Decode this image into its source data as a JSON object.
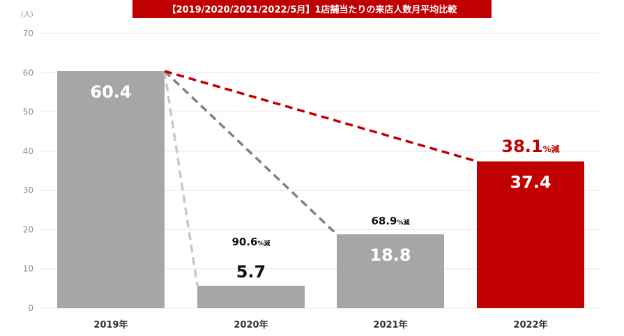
{
  "chart_data": {
    "type": "bar",
    "title": "【2019/2020/2021/2022/5月】1店舗当たりの来店人数月平均比較",
    "yunit": "(人)",
    "ylim": [
      0,
      70
    ],
    "yticks": [
      0,
      10,
      20,
      30,
      40,
      50,
      60,
      70
    ],
    "categories": [
      "2019年",
      "2020年",
      "2021年",
      "2022年"
    ],
    "values": [
      60.4,
      5.7,
      18.8,
      37.4
    ],
    "value_labels": [
      "60.4",
      "5.7",
      "18.8",
      "37.4"
    ],
    "bar_colors": [
      "#a6a6a6",
      "#a6a6a6",
      "#a6a6a6",
      "#c00000"
    ],
    "annotations": [
      {
        "category_index": 1,
        "value": "90.6",
        "unit": "%減",
        "color": "#111111"
      },
      {
        "category_index": 2,
        "value": "68.9",
        "unit": "%減",
        "color": "#111111"
      },
      {
        "category_index": 3,
        "value": "38.1",
        "unit": "%減",
        "color": "#c00000"
      }
    ],
    "grid": true,
    "legend": "none"
  }
}
